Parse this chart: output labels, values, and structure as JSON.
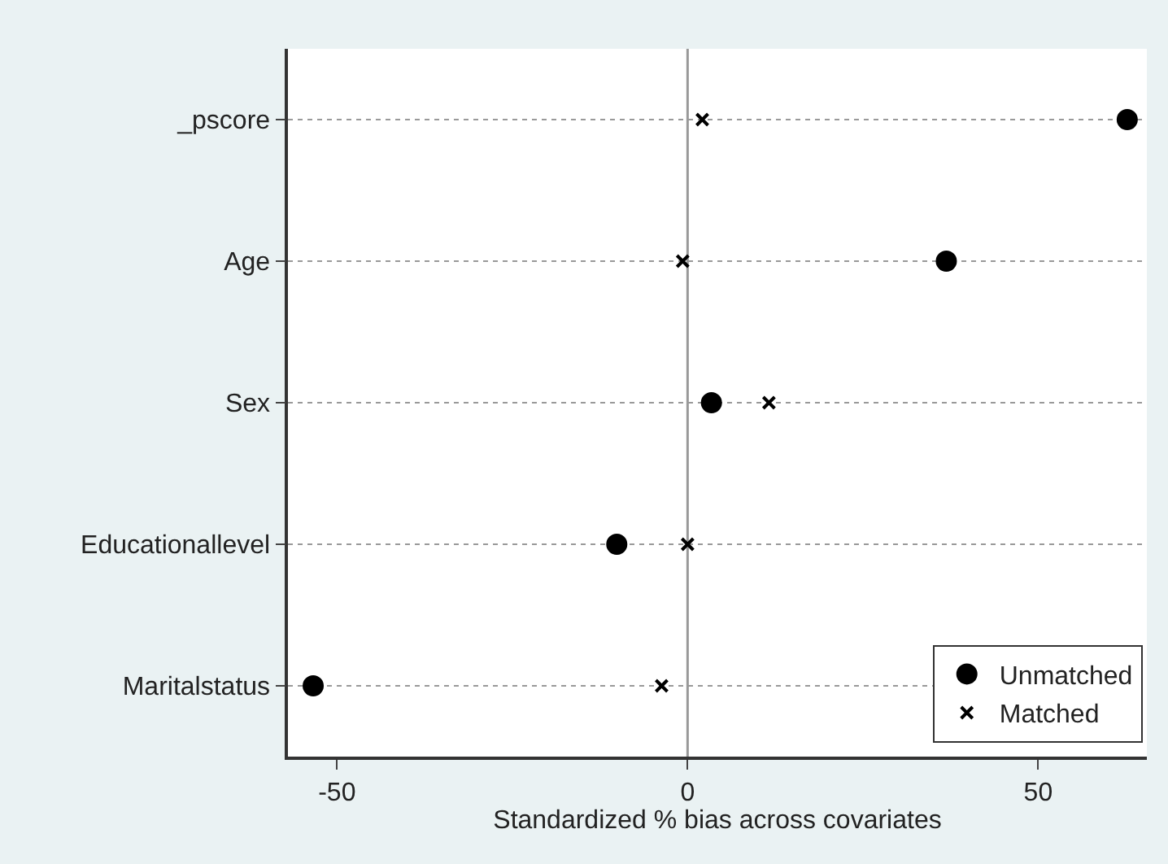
{
  "chart_data": {
    "type": "scatter",
    "xlabel": "Standardized % bias across covariates",
    "categories": [
      "_pscore",
      "Age",
      "Sex",
      "Educationallevel",
      "Maritalstatus"
    ],
    "orientation": "horizontal",
    "xlim": [
      -57,
      65.5
    ],
    "xticks": [
      -50,
      0,
      50
    ],
    "series": [
      {
        "name": "Unmatched",
        "color": "#000000",
        "marker": "circle",
        "values": [
          62.7,
          36.9,
          3.4,
          -10.1,
          -53.4
        ]
      },
      {
        "name": "Matched",
        "color": "#000000",
        "marker": "cross",
        "values": [
          2.1,
          -0.7,
          11.6,
          0,
          -3.7
        ]
      }
    ],
    "ref_lines": [
      {
        "axis": "x",
        "value": 0,
        "color": "#999999"
      }
    ],
    "grid": "y",
    "line_style": "dotted",
    "legend": "bottom right"
  }
}
